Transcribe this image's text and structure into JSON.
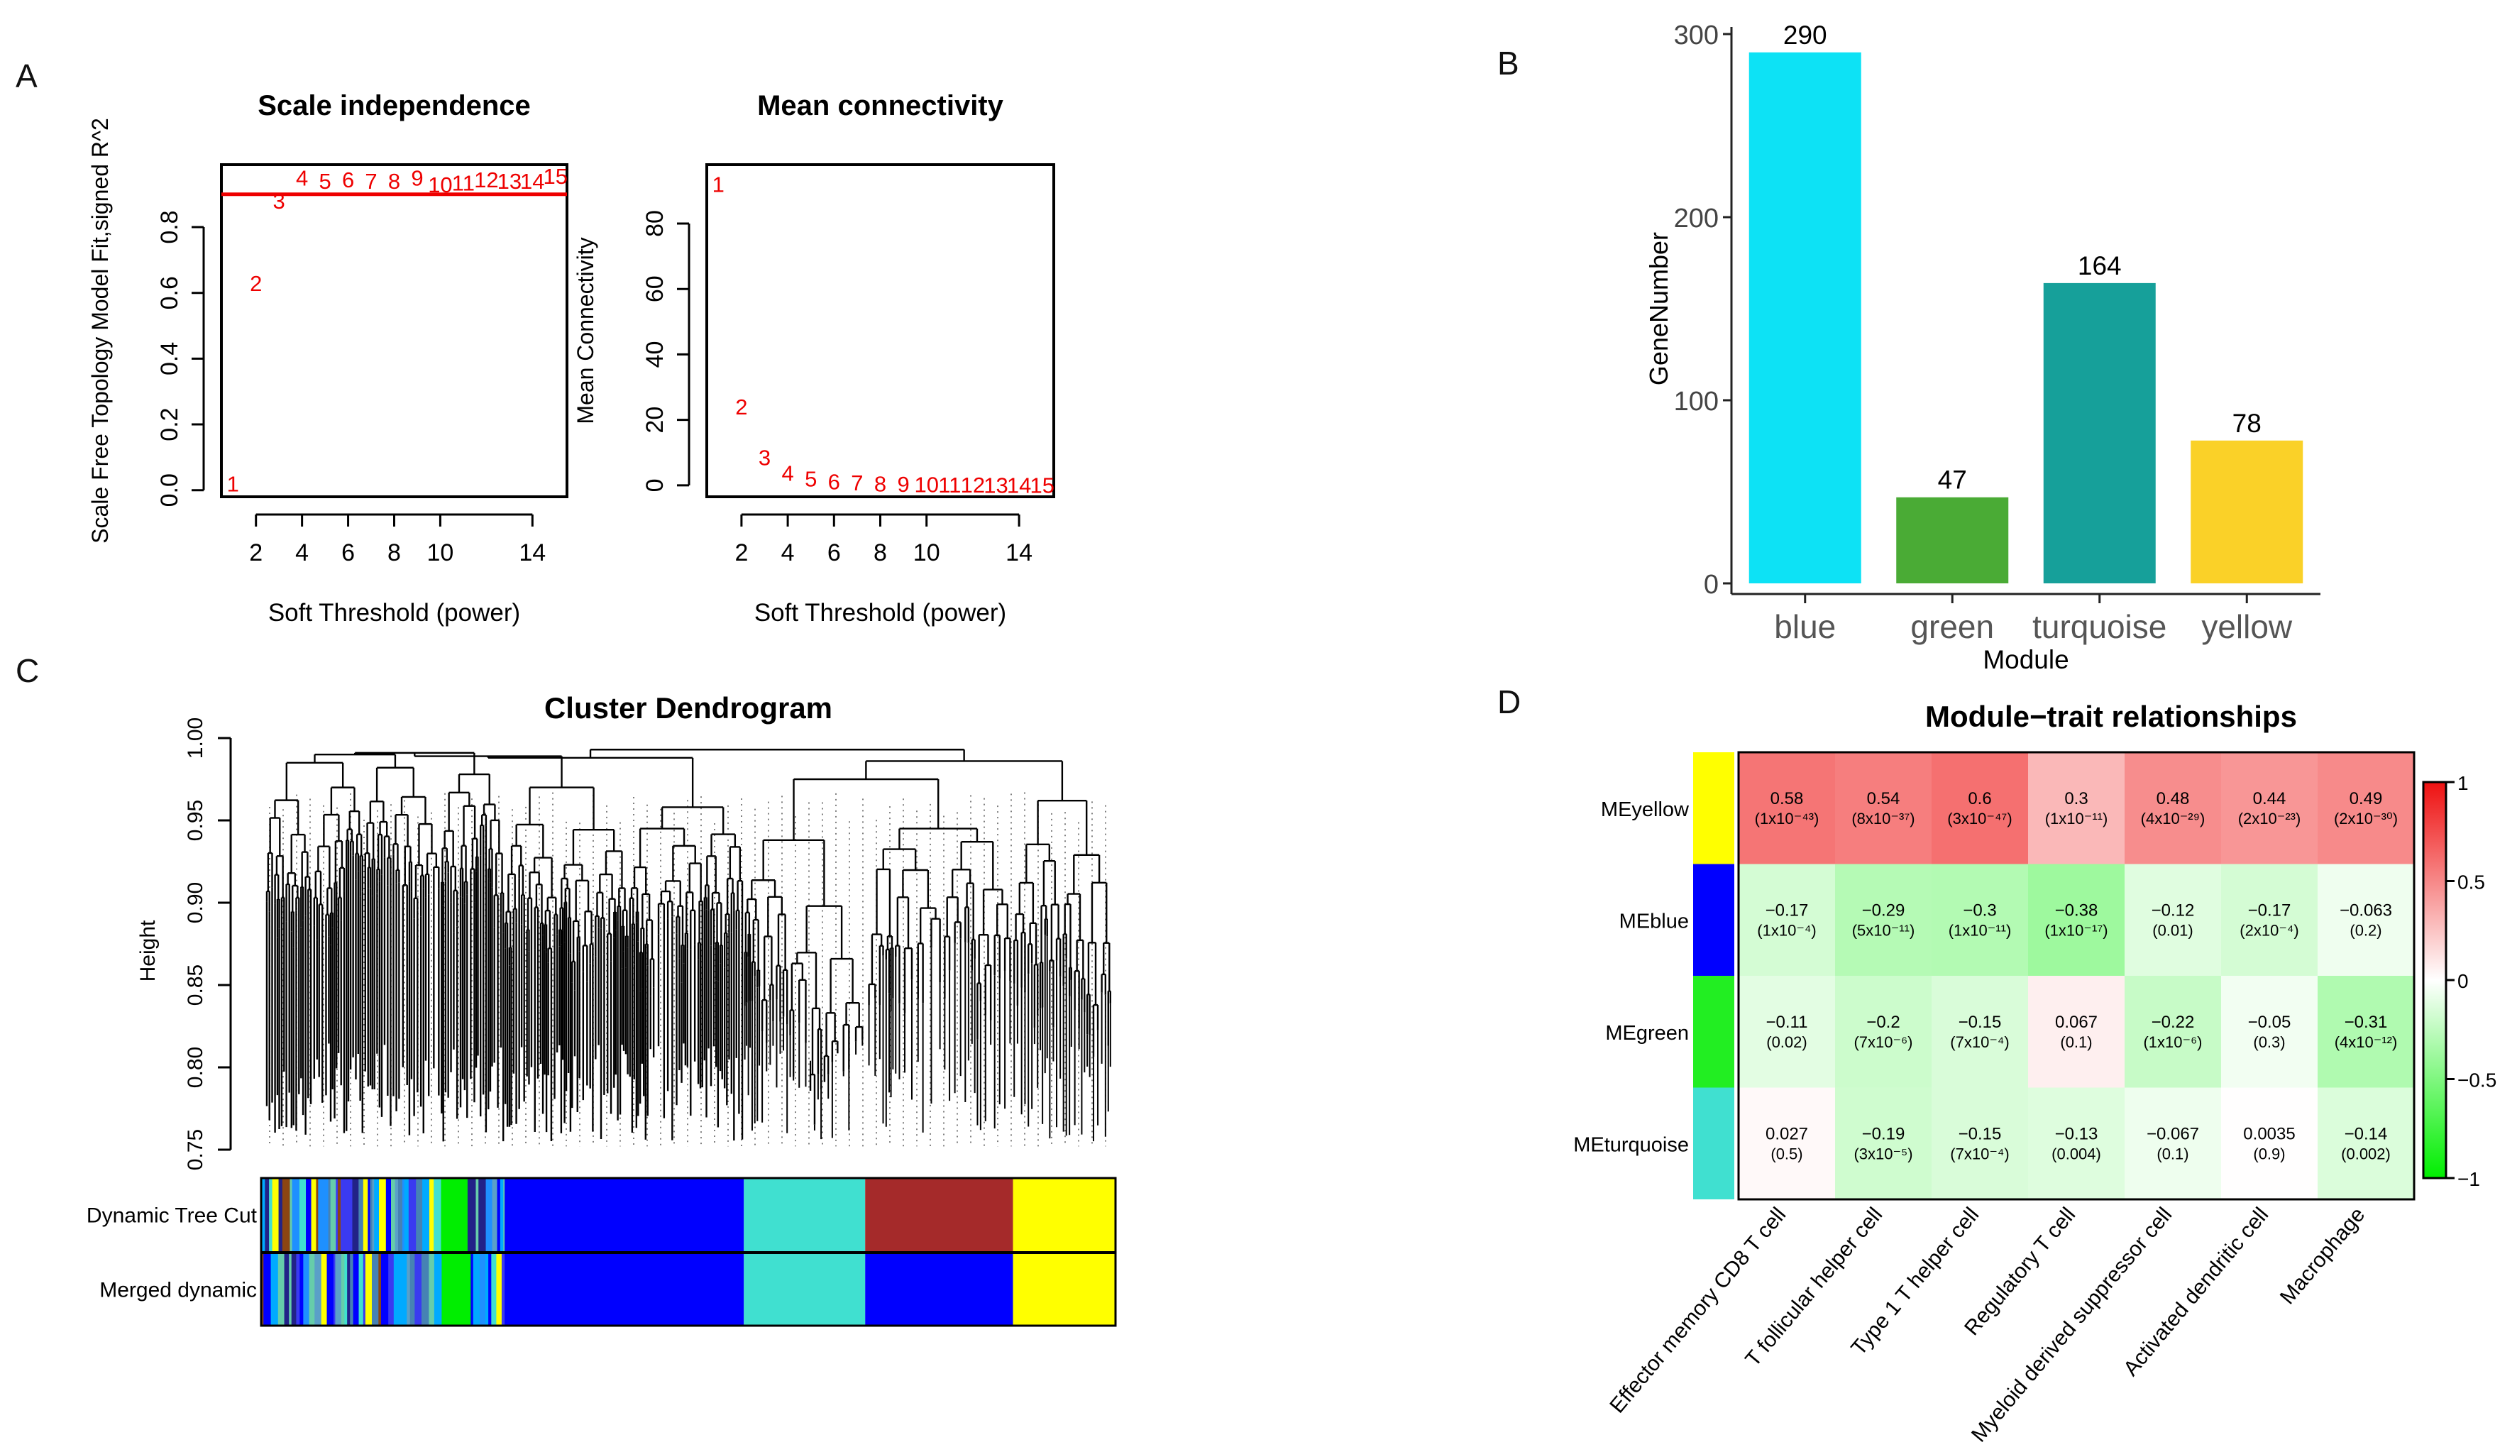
{
  "panels": {
    "A": "A",
    "B": "B",
    "C": "C",
    "D": "D"
  },
  "chart_data": [
    {
      "id": "scale-independence",
      "type": "scatter",
      "title": "Scale independence",
      "xlabel": "Soft Threshold (power)",
      "ylabel": "Scale Free Topology Model Fit,signed R^2",
      "xlim": [
        0.5,
        15.5
      ],
      "ylim": [
        -0.02,
        0.99
      ],
      "xticks": [
        2,
        4,
        6,
        8,
        10,
        14
      ],
      "yticks": [
        0.0,
        0.2,
        0.4,
        0.6,
        0.8
      ],
      "ytick_labels": [
        "0.0",
        "0.2",
        "0.4",
        "0.6",
        "0.8"
      ],
      "hline": 0.9,
      "point_color": "#ee0000",
      "line_color": "#ee0000",
      "x": [
        1,
        2,
        3,
        4,
        5,
        6,
        7,
        8,
        9,
        10,
        11,
        12,
        13,
        14,
        15
      ],
      "y": [
        0.02,
        0.63,
        0.88,
        0.95,
        0.94,
        0.945,
        0.94,
        0.94,
        0.95,
        0.93,
        0.935,
        0.945,
        0.94,
        0.94,
        0.955
      ],
      "labels": [
        "1",
        "2",
        "3",
        "4",
        "5",
        "6",
        "7",
        "8",
        "9",
        "10",
        "11",
        "12",
        "13",
        "14",
        "15"
      ]
    },
    {
      "id": "mean-connectivity",
      "type": "scatter",
      "title": "Mean connectivity",
      "xlabel": "Soft Threshold (power)",
      "ylabel": "Mean Connectivity",
      "xlim": [
        0.5,
        15.5
      ],
      "ylim": [
        -3.5,
        98
      ],
      "xticks": [
        2,
        4,
        6,
        8,
        10,
        14
      ],
      "yticks": [
        0,
        20,
        40,
        60,
        80
      ],
      "point_color": "#ee0000",
      "x": [
        1,
        2,
        3,
        4,
        5,
        6,
        7,
        8,
        9,
        10,
        11,
        12,
        13,
        14,
        15
      ],
      "y": [
        92,
        24,
        8.5,
        3.8,
        2,
        1.2,
        0.8,
        0.5,
        0.4,
        0.3,
        0.2,
        0.2,
        0.1,
        0.1,
        0.1
      ],
      "labels": [
        "1",
        "2",
        "3",
        "4",
        "5",
        "6",
        "7",
        "8",
        "9",
        "10",
        "11",
        "12",
        "13",
        "14",
        "15"
      ]
    },
    {
      "id": "gene-number",
      "type": "bar",
      "title": "",
      "xlabel": "Module",
      "ylabel": "GeneNumber",
      "categories": [
        "blue",
        "green",
        "turquoise",
        "yellow"
      ],
      "values": [
        290,
        47,
        164,
        78
      ],
      "value_labels": [
        "290",
        "47",
        "164",
        "78"
      ],
      "colors": [
        "#0de2f5",
        "#4aab35",
        "#16a09a",
        "#fad128"
      ],
      "ylim": [
        0,
        300
      ],
      "yticks": [
        0,
        100,
        200,
        300
      ]
    },
    {
      "id": "cluster-dendrogram",
      "type": "dendrogram",
      "title": "Cluster Dendrogram",
      "ylabel": "Height",
      "ylim": [
        0.75,
        1.0
      ],
      "yticks": [
        0.75,
        0.8,
        0.85,
        0.9,
        0.95,
        1.0
      ],
      "ytick_labels": [
        "0.75",
        "0.80",
        "0.85",
        "0.90",
        "0.95",
        "1.00"
      ],
      "color_rows": [
        {
          "label": "Dynamic Tree Cut",
          "segments": [
            {
              "color": "mixed",
              "from": 0.0,
              "to": 0.285
            },
            {
              "color": "#0000ff",
              "from": 0.285,
              "to": 0.565
            },
            {
              "color": "#40e0d0",
              "from": 0.565,
              "to": 0.707
            },
            {
              "color": "#a52a2a",
              "from": 0.707,
              "to": 0.88
            },
            {
              "color": "#ffff00",
              "from": 0.88,
              "to": 1.0
            }
          ]
        },
        {
          "label": "Merged dynamic",
          "segments": [
            {
              "color": "mixed",
              "from": 0.0,
              "to": 0.285
            },
            {
              "color": "#0000ff",
              "from": 0.285,
              "to": 0.565
            },
            {
              "color": "#40e0d0",
              "from": 0.565,
              "to": 0.707
            },
            {
              "color": "#0000ff",
              "from": 0.707,
              "to": 0.88
            },
            {
              "color": "#ffff00",
              "from": 0.88,
              "to": 1.0
            }
          ]
        }
      ]
    },
    {
      "id": "module-trait",
      "type": "heatmap",
      "title": "Module−trait relationships",
      "rows": [
        "MEyellow",
        "MEblue",
        "MEgreen",
        "MEturquoise"
      ],
      "row_colors": [
        "#ffff00",
        "#0000ff",
        "#22ee22",
        "#40e0d0"
      ],
      "columns": [
        "Effector memory CD8 T cell",
        "T follicular helper cell",
        "Type 1 T helper cell",
        "Regulatory T cell",
        "Myeloid derived suppressor cell",
        "Activated dendritic cell",
        "Macrophage"
      ],
      "values": [
        [
          0.58,
          0.54,
          0.6,
          0.3,
          0.48,
          0.44,
          0.49
        ],
        [
          -0.17,
          -0.29,
          -0.3,
          -0.38,
          -0.12,
          -0.17,
          -0.063
        ],
        [
          -0.11,
          -0.2,
          -0.15,
          0.067,
          -0.22,
          -0.05,
          -0.31
        ],
        [
          0.027,
          -0.19,
          -0.15,
          -0.13,
          -0.067,
          0.0035,
          -0.14
        ]
      ],
      "value_labels": [
        [
          "0.58",
          "0.54",
          "0.6",
          "0.3",
          "0.48",
          "0.44",
          "0.49"
        ],
        [
          "−0.17",
          "−0.29",
          "−0.3",
          "−0.38",
          "−0.12",
          "−0.17",
          "−0.063"
        ],
        [
          "−0.11",
          "−0.2",
          "−0.15",
          "0.067",
          "−0.22",
          "−0.05",
          "−0.31"
        ],
        [
          "0.027",
          "−0.19",
          "−0.15",
          "−0.13",
          "−0.067",
          "0.0035",
          "−0.14"
        ]
      ],
      "pvalues": [
        [
          "(1x10⁻⁴³)",
          "(8x10⁻³⁷)",
          "(3x10⁻⁴⁷)",
          "(1x10⁻¹¹)",
          "(4x10⁻²⁹)",
          "(2x10⁻²³)",
          "(2x10⁻³⁰)"
        ],
        [
          "(1x10⁻⁴)",
          "(5x10⁻¹¹)",
          "(1x10⁻¹¹)",
          "(1x10⁻¹⁷)",
          "(0.01)",
          "(2x10⁻⁴)",
          "(0.2)"
        ],
        [
          "(0.02)",
          "(7x10⁻⁶)",
          "(7x10⁻⁴)",
          "(0.1)",
          "(1x10⁻⁶)",
          "(0.3)",
          "(4x10⁻¹²)"
        ],
        [
          "(0.5)",
          "(3x10⁻⁵)",
          "(7x10⁻⁴)",
          "(0.004)",
          "(0.1)",
          "(0.9)",
          "(0.002)"
        ]
      ],
      "scale_range": [
        -1,
        1
      ],
      "scale_ticks": [
        1,
        0.5,
        0,
        -0.5,
        -1
      ],
      "scale_tick_labels": [
        "1",
        "0.5",
        "0",
        "−0.5",
        "−1"
      ],
      "color_low": "#00ee00",
      "color_mid": "#ffffff",
      "color_high": "#ee1111"
    }
  ]
}
